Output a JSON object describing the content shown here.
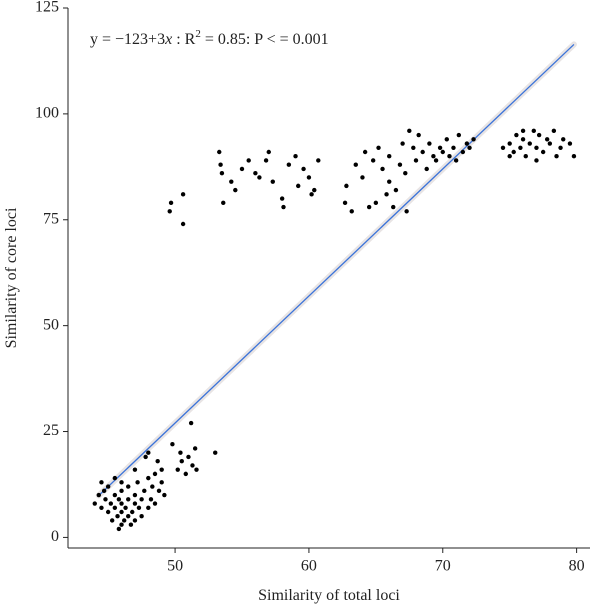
{
  "chart_data": {
    "type": "scatter",
    "xlabel": "Similarity of total loci",
    "ylabel": "Similarity of core loci",
    "annotation": [
      "y = −123+3",
      "x",
      " : R",
      "2",
      " = 0.85: P < = 0.001"
    ],
    "color": "#000000",
    "x": [
      44,
      44.3,
      44.5,
      44.7,
      44.8,
      45,
      45,
      45.2,
      45.3,
      45.5,
      45.5,
      45.7,
      45.8,
      46,
      46,
      46,
      46,
      46.2,
      46.3,
      46.5,
      46.5,
      46.7,
      46.8,
      47,
      47,
      47,
      47.2,
      47.3,
      47.5,
      47.5,
      47.7,
      47.8,
      48,
      48,
      48,
      48.2,
      48.3,
      48.5,
      48.5,
      48.7,
      48.8,
      49,
      49,
      49.2,
      46,
      45.5,
      47,
      46.5,
      44.5,
      45.8,
      49.8,
      50.2,
      50.5,
      50.8,
      51,
      51.2,
      51.3,
      51.5,
      51.6,
      50.4,
      53,
      49.6,
      49.7,
      50.6,
      50.6,
      53.3,
      53.4,
      53.5,
      53.6,
      54.2,
      54.5,
      55,
      55.5,
      56,
      56.3,
      56.8,
      57,
      57.3,
      58,
      58.1,
      58.5,
      59,
      59.2,
      59.6,
      60,
      60.4,
      60.7,
      60.2,
      62.7,
      62.8,
      63.2,
      63.5,
      64,
      64.2,
      64.5,
      64.8,
      65,
      65.2,
      65.5,
      65.8,
      66,
      66,
      66.3,
      66.5,
      66.8,
      67,
      67.2,
      67.3,
      67.5,
      67.8,
      68,
      68.2,
      68.5,
      68.8,
      69,
      69.3,
      69.5,
      69.8,
      70,
      70.3,
      70.5,
      70.8,
      71,
      71.2,
      71.5,
      71.8,
      72,
      72.3,
      74.5,
      75,
      75.3,
      75.5,
      75.8,
      76,
      76.2,
      76.5,
      76.8,
      77,
      77.2,
      77.5,
      77.8,
      78,
      78.3,
      78.5,
      78.8,
      79,
      79.5,
      79.8,
      76,
      77,
      75
    ],
    "values": [
      8,
      10,
      7,
      11,
      9,
      6,
      12,
      8,
      4,
      10,
      7,
      5,
      9,
      3,
      6,
      8,
      11,
      4,
      7,
      5,
      9,
      3,
      6,
      8,
      10,
      4,
      13,
      7,
      5,
      9,
      11,
      19,
      7,
      14,
      20,
      9,
      12,
      15,
      8,
      18,
      11,
      13,
      16,
      10,
      13,
      14,
      16,
      12,
      13,
      2,
      22,
      16,
      18,
      15,
      19,
      27,
      17,
      21,
      16,
      20,
      20,
      77,
      79,
      81,
      74,
      91,
      88,
      86,
      79,
      84,
      82,
      87,
      89,
      86,
      85,
      89,
      91,
      84,
      80,
      78,
      88,
      90,
      83,
      87,
      85,
      82,
      89,
      81,
      79,
      83,
      77,
      88,
      85,
      91,
      78,
      89,
      79,
      92,
      87,
      81,
      84,
      90,
      78,
      82,
      88,
      93,
      86,
      77,
      96,
      92,
      89,
      95,
      91,
      87,
      93,
      90,
      89,
      92,
      91,
      94,
      90,
      92,
      89,
      95,
      91,
      93,
      92,
      94,
      92,
      93,
      91,
      95,
      92,
      94,
      90,
      93,
      96,
      92,
      95,
      91,
      94,
      93,
      96,
      90,
      92,
      94,
      93,
      90,
      96,
      89,
      90
    ],
    "fit": {
      "x": [
        44.3,
        79.8
      ],
      "values": [
        9.9,
        116.4
      ],
      "color": "#3b73d9"
    },
    "xlim": [
      42,
      81
    ],
    "xticks": [
      50,
      60,
      70,
      80
    ],
    "ylim": [
      -2.5,
      125
    ],
    "yticks": [
      0,
      25,
      50,
      75,
      100,
      125
    ]
  }
}
